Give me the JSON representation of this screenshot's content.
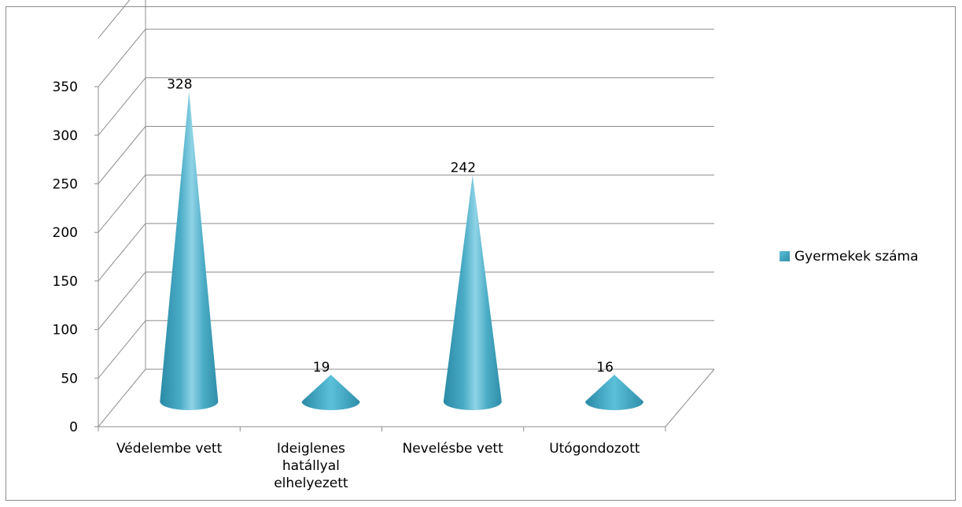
{
  "chart_data": {
    "type": "bar",
    "bar_shape": "3d-cone",
    "categories": [
      "Védelembe vett",
      "Ideiglenes hatállyal elhelyezett",
      "Nevelésbe vett",
      "Utógondozott"
    ],
    "category_lines": [
      [
        "Védelembe vett"
      ],
      [
        "Ideiglenes",
        "hatállyal",
        "elhelyezett"
      ],
      [
        "Nevelésbe vett"
      ],
      [
        "Utógondozott"
      ]
    ],
    "series": [
      {
        "name": "Gyermekek száma",
        "values": [
          328,
          19,
          242,
          16
        ],
        "color": "#4bacc6"
      }
    ],
    "data_labels": [
      "328",
      "19",
      "242",
      "16"
    ],
    "ylim": [
      0,
      350
    ],
    "yticks": [
      0,
      50,
      100,
      150,
      200,
      250,
      300,
      350
    ],
    "ytick_labels": [
      "0",
      "50",
      "100",
      "150",
      "200",
      "250",
      "300",
      "350"
    ],
    "grid": true,
    "legend_position": "right",
    "title": "",
    "xlabel": "",
    "ylabel": ""
  }
}
